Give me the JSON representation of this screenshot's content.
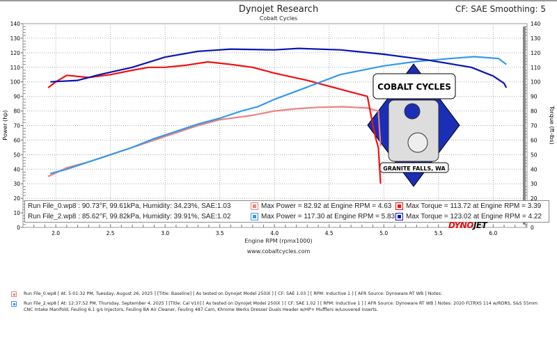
{
  "header": {
    "title": "Dynojet Research",
    "subtitle": "Cobalt Cycles",
    "correction": "CF: SAE Smoothing: 5"
  },
  "footer_url": "www.cobaltcycles.com",
  "logo": {
    "top_text": "COBALT CYCLES",
    "bottom_text": "GRANITE FALLS, WA",
    "dynojet_a": "DYNO",
    "dynojet_b": "JET",
    "colors": {
      "diamond": "#1a2fb5"
    }
  },
  "chart_data": {
    "type": "line",
    "xlabel": "Engine RPM (rpmx1000)",
    "ylabel": "Power (hp)",
    "y2label": "Torque (ft-lbs)",
    "xlim": [
      1.7,
      6.31
    ],
    "ylim": [
      0,
      140
    ],
    "y2lim": [
      0,
      140
    ],
    "xticks": [
      "2.0",
      "2.5",
      "3.0",
      "3.5",
      "4.0",
      "4.5",
      "5.0",
      "5.5",
      "6.0"
    ],
    "yticks": [
      "0",
      "10",
      "20",
      "30",
      "40",
      "50",
      "60",
      "70",
      "80",
      "90",
      "100",
      "110",
      "120",
      "130",
      "140"
    ],
    "grid": true,
    "series": [
      {
        "name": "Run File_0.wp8 Power",
        "color": "#f08080",
        "x": [
          1.93,
          2.1,
          2.3,
          2.5,
          2.7,
          2.9,
          3.1,
          3.3,
          3.5,
          3.8,
          4.0,
          4.2,
          4.4,
          4.63,
          4.85,
          4.95,
          4.97
        ],
        "y": [
          35,
          41,
          45,
          50,
          55,
          60,
          65,
          70,
          74,
          77,
          80,
          81.5,
          82.5,
          82.9,
          82,
          80,
          56
        ]
      },
      {
        "name": "Run File_0.wp8 Torque",
        "color": "#f01010",
        "x": [
          1.93,
          2.0,
          2.1,
          2.3,
          2.5,
          2.7,
          2.85,
          3.0,
          3.2,
          3.39,
          3.6,
          3.8,
          4.0,
          4.3,
          4.5,
          4.7,
          4.85,
          4.9,
          4.93,
          4.95,
          4.97
        ],
        "y": [
          96,
          100,
          104.5,
          103,
          105,
          108,
          110,
          110,
          111.5,
          113.7,
          112,
          110,
          106,
          101,
          97,
          93,
          90,
          70,
          60,
          55,
          30
        ]
      },
      {
        "name": "Run File_2.wp8 Power",
        "color": "#3399ee",
        "x": [
          1.95,
          2.1,
          2.3,
          2.5,
          2.7,
          2.9,
          3.1,
          3.3,
          3.5,
          3.7,
          3.85,
          4.0,
          4.25,
          4.6,
          5.0,
          5.3,
          5.6,
          5.83,
          6.05,
          6.12
        ],
        "y": [
          37,
          40,
          45,
          50,
          55,
          61,
          66,
          71,
          75,
          80,
          83,
          88,
          95,
          105,
          111,
          114,
          116,
          117.3,
          116,
          112
        ]
      },
      {
        "name": "Run File_2.wp8 Torque",
        "color": "#0a14b4",
        "x": [
          1.95,
          2.2,
          2.4,
          2.7,
          3.0,
          3.3,
          3.6,
          4.0,
          4.22,
          4.6,
          5.0,
          5.4,
          5.8,
          6.0,
          6.1,
          6.12
        ],
        "y": [
          100,
          101,
          105,
          110,
          117,
          121,
          122.5,
          122,
          123,
          122,
          119,
          115,
          110,
          104,
          99,
          96
        ]
      }
    ]
  },
  "legend": [
    {
      "run": "Run File_0.wp8",
      "conditions": " : 90.73°F, 99.61kPa, Humidity: 34.23%, SAE:1.03",
      "power": "Max Power = 82.92 at Engine RPM = 4.63",
      "torque": "Max Torque = 113.72 at Engine RPM = 3.39",
      "power_color": "#f08080",
      "torque_color": "#f01010"
    },
    {
      "run": "Run File_2.wp8",
      "conditions": " : 85.62°F, 99.82kPa, Humidity: 39.91%, SAE:1.02",
      "power": "Max Power = 117.30 at Engine RPM = 5.83",
      "torque": "Max Torque = 123.02 at Engine RPM = 4.22",
      "power_color": "#3399ee",
      "torque_color": "#0a14b4"
    }
  ],
  "notes": [
    {
      "text": "Run File_0.wp8 [ At: 5:01:32 PM, Tuesday, August 26, 2025 ] [Title: Baseline]  [ As tested on Dynojet Model 250iX ] [ CF: SAE 1.03 ] [ RPM: Inductive 1 ] [ AFR Source: Dynoware RT WB ] Notes:",
      "color": "#f08080"
    },
    {
      "text": "Run File_2.wp8 [ At: 12:37:52 PM, Thursday, September 4, 2025 ] [Title: Cal V10]  [ As tested on Dynojet Model 250iX ] [ CF: SAE 1.02 ] [ RPM: Inductive 1 ] [ AFR Source: Dynoware RT WB ] Notes: 2020 FLTRXS 114 w/RDRS, S&S 55mm CNC Intake Manifold, Feuling 6.1 g/s Injectors, Feuling BA Air Cleaner, Feuling 487 Cam, Khrome Werks Dresser Duals Header w/HP+ Mufflers w/Louvered Inserts.",
      "color": "#3399ee"
    }
  ]
}
